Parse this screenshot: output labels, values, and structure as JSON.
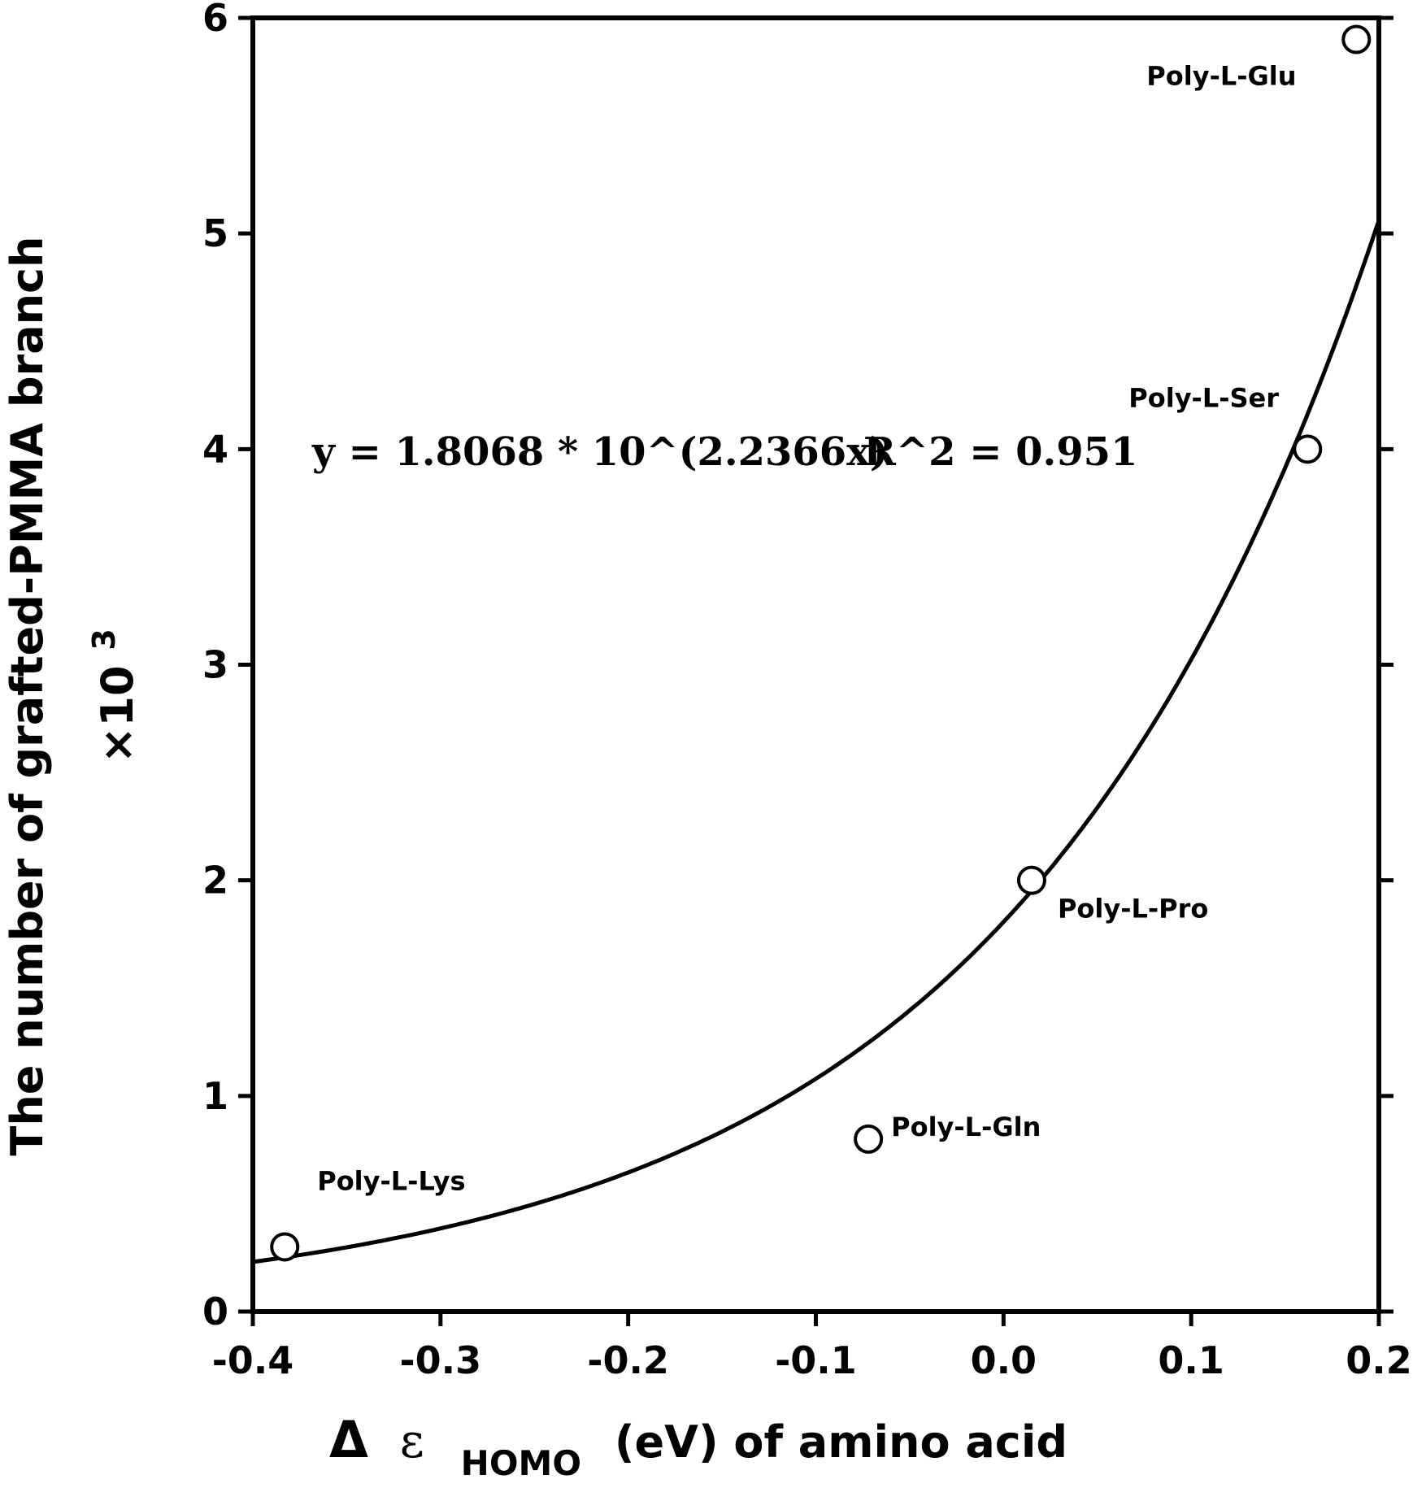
{
  "chart_data": {
    "type": "scatter",
    "x_range": [
      -0.4,
      0.2
    ],
    "y_range": [
      0,
      6
    ],
    "x_ticks": [
      "-0.4",
      "-0.3",
      "-0.2",
      "-0.1",
      "0.0",
      "0.1",
      "0.2"
    ],
    "x_tick_values": [
      -0.4,
      -0.3,
      -0.2,
      -0.1,
      0.0,
      0.1,
      0.2
    ],
    "y_ticks": [
      "0",
      "1",
      "2",
      "3",
      "4",
      "5",
      "6"
    ],
    "y_tick_values": [
      0,
      1,
      2,
      3,
      4,
      5,
      6
    ],
    "xlabel": {
      "delta": "Δ",
      "epsilon": "ε",
      "subscript": "HOMO",
      "rest": "(eV) of amino acid"
    },
    "ylabel": {
      "line1": "The number of grafted-PMMA branch",
      "line2": "×10",
      "line2_sup": "3"
    },
    "equation": "y = 1.8068 * 10^(2.2366x)",
    "r_squared": "R^2 = 0.951",
    "fit": {
      "a": 1.8068,
      "b": 2.2366
    },
    "grid": false,
    "points": [
      {
        "x": -0.383,
        "y": 0.3,
        "label": "Poly-L-Lys"
      },
      {
        "x": -0.072,
        "y": 0.8,
        "label": "Poly-L-Gln"
      },
      {
        "x": 0.015,
        "y": 2.0,
        "label": "Poly-L-Pro"
      },
      {
        "x": 0.162,
        "y": 4.0,
        "label": "Poly-L-Ser"
      },
      {
        "x": 0.188,
        "y": 5.9,
        "label": "Poly-L-Glu"
      }
    ]
  }
}
